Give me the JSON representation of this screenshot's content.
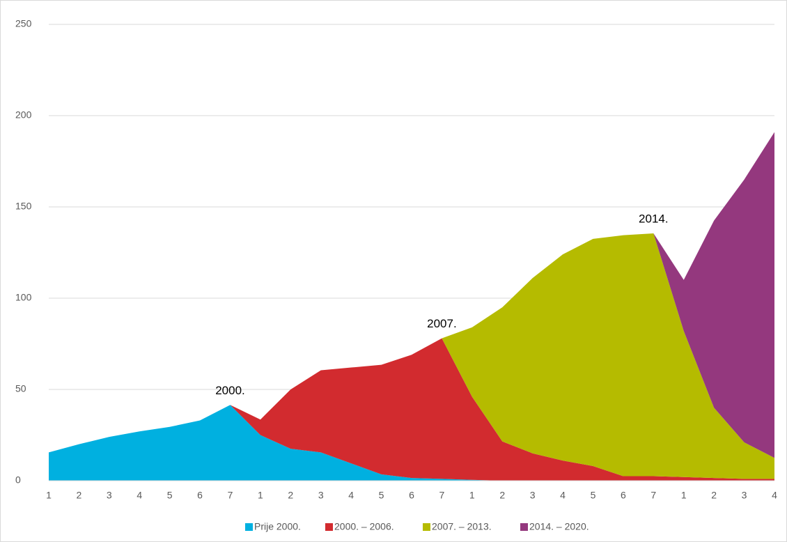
{
  "chart_data": {
    "type": "area",
    "stacked": true,
    "categories": [
      "1",
      "2",
      "3",
      "4",
      "5",
      "6",
      "7",
      "1",
      "2",
      "3",
      "4",
      "5",
      "6",
      "7",
      "1",
      "2",
      "3",
      "4",
      "5",
      "6",
      "7",
      "1",
      "2",
      "3",
      "4"
    ],
    "series": [
      {
        "name": "Prije 2000.",
        "color": "#00b0e0",
        "values": [
          15.5,
          20,
          24,
          27,
          29.5,
          33,
          41.5,
          25,
          17.5,
          15.5,
          9.5,
          3.5,
          1.5,
          1,
          0.5,
          0,
          0,
          0,
          0,
          0,
          0,
          0,
          0,
          0,
          0
        ]
      },
      {
        "name": "2000. – 2006.",
        "color": "#d22b2f",
        "values": [
          0,
          0,
          0,
          0,
          0,
          0,
          0,
          8.5,
          32.5,
          45,
          52.5,
          60,
          67.5,
          77,
          45.5,
          21.5,
          15,
          11,
          8,
          2.5,
          2.5,
          2,
          1.5,
          1,
          1
        ]
      },
      {
        "name": "2007. – 2013.",
        "color": "#b5bb00",
        "values": [
          0,
          0,
          0,
          0,
          0,
          0,
          0,
          0,
          0,
          0,
          0,
          0,
          0,
          0,
          38,
          73.5,
          96,
          113,
          124.5,
          132,
          133,
          80,
          38.5,
          20,
          11.5
        ]
      },
      {
        "name": "2014. – 2020.",
        "color": "#94387e",
        "values": [
          0,
          0,
          0,
          0,
          0,
          0,
          0,
          0,
          0,
          0,
          0,
          0,
          0,
          0,
          0,
          0,
          0,
          0,
          0,
          0,
          0,
          28,
          102.5,
          144,
          178.5
        ]
      }
    ],
    "annotations": [
      {
        "text": "2000.",
        "index": 6
      },
      {
        "text": "2007.",
        "index": 13
      },
      {
        "text": "2014.",
        "index": 20
      }
    ],
    "ylim": [
      0,
      250
    ],
    "yticks": [
      0,
      50,
      100,
      150,
      200,
      250
    ],
    "grid": true,
    "legend": "bottom"
  }
}
